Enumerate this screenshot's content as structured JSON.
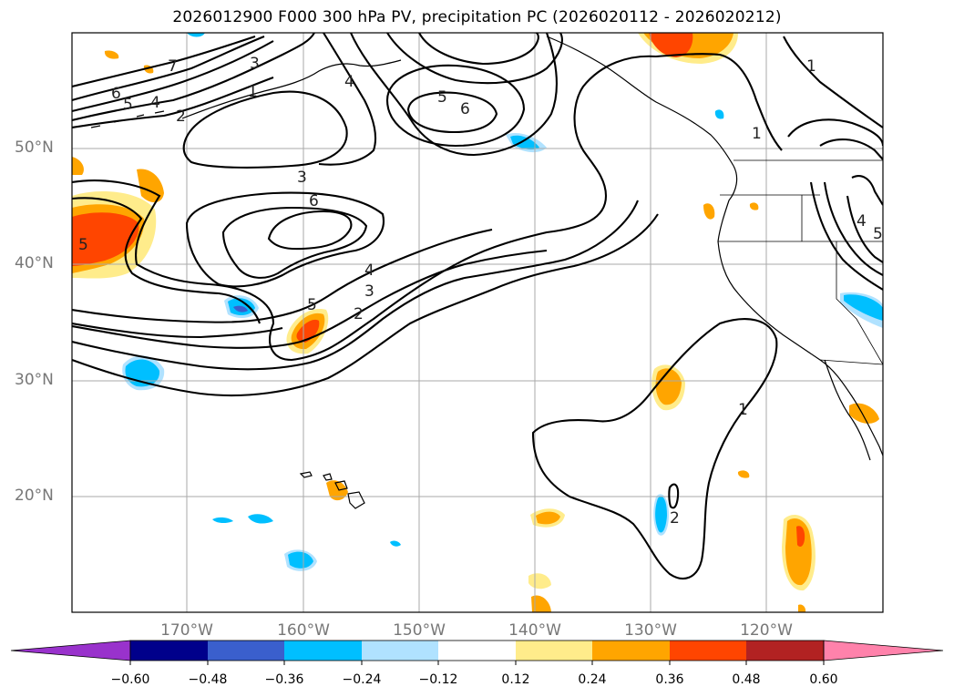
{
  "title": "2026012900 F000 300 hPa PV, precipitation PC (2026020112 - 2026020212)",
  "map": {
    "lat_labels": [
      "50°N",
      "40°N",
      "30°N",
      "20°N"
    ],
    "lon_labels": [
      "170°W",
      "160°W",
      "150°W",
      "140°W",
      "130°W",
      "120°W"
    ],
    "pv_contour_labels": [
      "7",
      "6",
      "5",
      "4",
      "3",
      "2",
      "1",
      "5",
      "6",
      "4",
      "3",
      "6",
      "5",
      "4",
      "3",
      "2",
      "1",
      "1",
      "1",
      "2",
      "5",
      "4",
      "5"
    ]
  },
  "colorbar": {
    "tick_labels": [
      "−0.60",
      "−0.48",
      "−0.36",
      "−0.24",
      "−0.12",
      "0.12",
      "0.24",
      "0.36",
      "0.48",
      "0.60"
    ],
    "colors": [
      "#9932cc",
      "#00008b",
      "#3a5fcd",
      "#00bfff",
      "#b0e2ff",
      "#ffffff",
      "#ffec8b",
      "#ffa500",
      "#ff4500",
      "#b22222",
      "#ff82ab"
    ]
  }
}
